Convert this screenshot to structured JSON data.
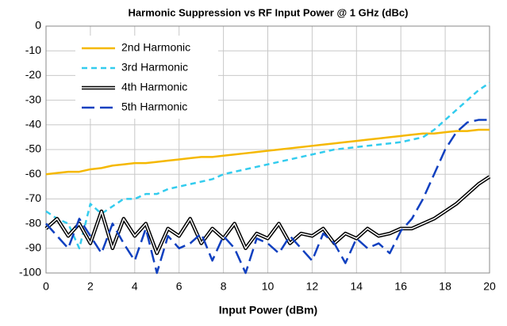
{
  "chart_data": {
    "type": "line",
    "title": "Harmonic Suppression vs RF Input Power @ 1 GHz (dBc)",
    "x_label": "Input Power (dBm)",
    "x": [
      0,
      0.5,
      1,
      1.5,
      2,
      2.5,
      3,
      3.5,
      4,
      4.5,
      5,
      5.5,
      6,
      6.5,
      7,
      7.5,
      8,
      8.5,
      9,
      9.5,
      10,
      10.5,
      11,
      11.5,
      12,
      12.5,
      13,
      13.5,
      14,
      14.5,
      15,
      15.5,
      16,
      16.5,
      17,
      17.5,
      18,
      18.5,
      19,
      19.5,
      20
    ],
    "series": [
      {
        "name": "2nd Harmonic",
        "color": "#f5b800",
        "style": "solid",
        "values": [
          -60,
          -59.5,
          -59,
          -59,
          -58,
          -57.5,
          -56.5,
          -56,
          -55.5,
          -55.5,
          -55,
          -54.5,
          -54,
          -53.5,
          -53,
          -53,
          -52.5,
          -52,
          -51.5,
          -51,
          -50.5,
          -50,
          -49.5,
          -49,
          -48.5,
          -48,
          -47.5,
          -47,
          -46.5,
          -46,
          -45.5,
          -45,
          -44.5,
          -44,
          -43.5,
          -43.5,
          -43,
          -42.5,
          -42.5,
          -42,
          -42
        ]
      },
      {
        "name": "3rd Harmonic",
        "color": "#33ccee",
        "style": "dashed",
        "values": [
          -75,
          -78,
          -80,
          -90,
          -72,
          -76,
          -73,
          -70,
          -70,
          -68,
          -68,
          -66,
          -65,
          -64,
          -63,
          -62,
          -60,
          -59,
          -58,
          -57,
          -56,
          -55,
          -54,
          -53,
          -52,
          -51,
          -50,
          -49.5,
          -49,
          -48.5,
          -48,
          -47.5,
          -47,
          -46,
          -45,
          -42,
          -38,
          -34,
          -30,
          -26,
          -23
        ]
      },
      {
        "name": "4th Harmonic",
        "color": "#000000",
        "style": "double",
        "values": [
          -82,
          -78,
          -85,
          -80,
          -88,
          -75,
          -90,
          -78,
          -85,
          -80,
          -92,
          -82,
          -85,
          -78,
          -88,
          -82,
          -86,
          -80,
          -90,
          -84,
          -86,
          -80,
          -88,
          -84,
          -85,
          -82,
          -88,
          -84,
          -86,
          -82,
          -85,
          -84,
          -82,
          -82,
          -80,
          -78,
          -75,
          -72,
          -68,
          -64,
          -61
        ]
      },
      {
        "name": "5th Harmonic",
        "color": "#1040c0",
        "style": "longdash",
        "values": [
          -80,
          -85,
          -90,
          -78,
          -85,
          -92,
          -80,
          -88,
          -95,
          -82,
          -100,
          -85,
          -90,
          -88,
          -84,
          -95,
          -85,
          -90,
          -100,
          -86,
          -88,
          -92,
          -85,
          -90,
          -95,
          -84,
          -88,
          -96,
          -86,
          -90,
          -88,
          -92,
          -83,
          -78,
          -70,
          -60,
          -50,
          -43,
          -39,
          -38,
          -38
        ]
      }
    ],
    "xlim": [
      0,
      20
    ],
    "xticks": [
      0,
      2,
      4,
      6,
      8,
      10,
      12,
      14,
      16,
      18,
      20
    ],
    "ylim": [
      -100,
      0
    ],
    "yticks": [
      0,
      -10,
      -20,
      -30,
      -40,
      -50,
      -60,
      -70,
      -80,
      -90,
      -100
    ],
    "grid": true,
    "legend": "top-left"
  }
}
